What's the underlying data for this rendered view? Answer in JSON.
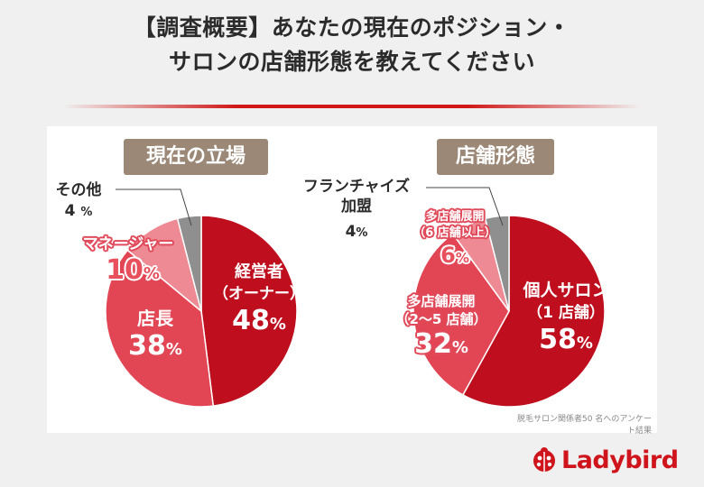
{
  "title_line1": "【調査概要】あなたの現在のポジション・",
  "title_line2": "サロンの店舗形態を教えてください",
  "source_note": "脱毛サロン関係者50 名へのアンケート結果",
  "brand": "Ladybird",
  "colors": {
    "dark_red": "#bf0f1f",
    "medium_red": "#e24655",
    "light_pink": "#ee8a94",
    "gray": "#8f8f8f",
    "panel_title_bg": "#9b8877"
  },
  "chart_data": [
    {
      "type": "pie",
      "title": "現在の立場",
      "start_angle": "12 o'clock, clockwise",
      "slices": [
        {
          "label": "経営者（オーナー）",
          "value": 48,
          "color": "#bf0f1f"
        },
        {
          "label": "店長",
          "value": 38,
          "color": "#e24655"
        },
        {
          "label": "マネージャー",
          "value": 10,
          "color": "#ee8a94"
        },
        {
          "label": "その他",
          "value": 4,
          "color": "#8f8f8f"
        }
      ]
    },
    {
      "type": "pie",
      "title": "店舗形態",
      "start_angle": "12 o'clock, clockwise",
      "slices": [
        {
          "label": "個人サロン（1店舗）",
          "value": 58,
          "color": "#bf0f1f"
        },
        {
          "label": "多店舗展開（2〜5店舗）",
          "value": 32,
          "color": "#e24655"
        },
        {
          "label": "多店舗展開（6店舗以上）",
          "value": 6,
          "color": "#ee8a94"
        },
        {
          "label": "フランチャイズ加盟",
          "value": 4,
          "color": "#8f8f8f"
        }
      ]
    }
  ],
  "labels": {
    "left": {
      "s0_name1": "経営者",
      "s0_name2": "（オーナー）",
      "s0_pct": "48",
      "s1_name": "店長",
      "s1_pct": "38",
      "s2_name": "マネージャー",
      "s2_pct": "10",
      "s3_name": "その他",
      "s3_pct": "4"
    },
    "right": {
      "s0_name1": "個人サロン",
      "s0_name2": "（1 店舗）",
      "s0_pct": "58",
      "s1_name1": "多店舗展開",
      "s1_name2": "（2〜5 店舗）",
      "s1_pct": "32",
      "s2_name1": "多店舗展開",
      "s2_name2": "（6 店舗以上）",
      "s2_pct": "6",
      "s3_name1": "フランチャイズ",
      "s3_name2": "加盟",
      "s3_pct": "4"
    },
    "pct_sign": "%"
  }
}
